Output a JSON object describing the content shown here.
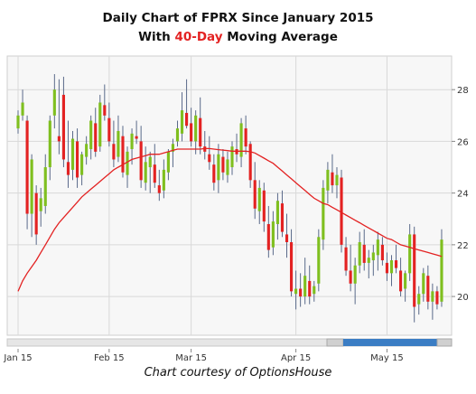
{
  "title_line1": "Daily Chart of FPRX Since January 2015",
  "title_line2_prefix": "With ",
  "title_line2_highlight": "40-Day",
  "title_line2_suffix": " Moving Average",
  "caption": "Chart courtesy of OptionsHouse",
  "colors": {
    "up": "#7fbf1f",
    "down": "#e32222",
    "ma": "#e32222",
    "grid": "#d9d9d9",
    "plot_bg": "#f7f7f7",
    "scrollbar": "#3b7dc4"
  },
  "chart_data": {
    "type": "candlestick",
    "title": "Daily Chart of FPRX Since January 2015",
    "subtitle": "With 40-Day Moving Average",
    "x_tick_labels": [
      "Jan 15",
      "Feb 15",
      "Mar 15",
      "Apr 15",
      "May 15"
    ],
    "y_tick_labels": [
      "20",
      "22",
      "24",
      "26",
      "28"
    ],
    "ylim": [
      18.5,
      29.3
    ],
    "grid": true,
    "y_axis_side": "right",
    "series": [
      {
        "kind": "ohlc",
        "candles": [
          [
            26.5,
            27.2,
            26.3,
            27.0
          ],
          [
            27.0,
            28.0,
            26.8,
            27.5
          ],
          [
            26.8,
            27.0,
            22.6,
            23.2
          ],
          [
            23.2,
            25.5,
            22.3,
            25.3
          ],
          [
            24.0,
            24.3,
            22.0,
            22.4
          ],
          [
            23.3,
            24.2,
            22.7,
            23.8
          ],
          [
            23.5,
            25.5,
            23.2,
            25.0
          ],
          [
            25.0,
            27.0,
            24.5,
            26.8
          ],
          [
            27.0,
            28.6,
            26.5,
            28.0
          ],
          [
            26.2,
            28.4,
            25.5,
            26.0
          ],
          [
            27.8,
            28.5,
            25.0,
            25.3
          ],
          [
            25.2,
            26.8,
            24.2,
            24.7
          ],
          [
            24.9,
            26.4,
            24.5,
            26.1
          ],
          [
            26.0,
            26.5,
            24.2,
            24.6
          ],
          [
            24.7,
            25.6,
            24.3,
            25.5
          ],
          [
            25.4,
            26.2,
            25.1,
            25.9
          ],
          [
            25.7,
            27.0,
            25.3,
            26.8
          ],
          [
            26.7,
            27.3,
            25.4,
            25.6
          ],
          [
            25.8,
            27.8,
            25.6,
            27.5
          ],
          [
            27.4,
            28.2,
            26.8,
            27.0
          ],
          [
            26.9,
            27.5,
            25.8,
            26.0
          ],
          [
            25.9,
            26.8,
            25.0,
            25.3
          ],
          [
            25.4,
            27.0,
            25.2,
            26.4
          ],
          [
            26.2,
            26.6,
            24.6,
            24.8
          ],
          [
            24.7,
            25.8,
            24.2,
            25.6
          ],
          [
            25.7,
            26.5,
            25.1,
            26.3
          ],
          [
            26.2,
            26.8,
            25.9,
            26.1
          ],
          [
            26.0,
            26.6,
            24.2,
            24.5
          ],
          [
            24.4,
            25.8,
            24.1,
            25.2
          ],
          [
            25.0,
            25.6,
            24.0,
            25.4
          ],
          [
            25.1,
            25.9,
            24.2,
            24.4
          ],
          [
            24.3,
            24.9,
            23.7,
            24.0
          ],
          [
            24.1,
            25.3,
            23.8,
            24.9
          ],
          [
            24.8,
            25.7,
            24.5,
            25.6
          ],
          [
            25.6,
            26.1,
            25.0,
            25.9
          ],
          [
            26.0,
            26.8,
            25.8,
            26.5
          ],
          [
            26.3,
            27.9,
            26.0,
            27.2
          ],
          [
            27.1,
            28.4,
            26.5,
            26.6
          ],
          [
            26.7,
            27.3,
            25.8,
            26.0
          ],
          [
            26.0,
            27.2,
            25.5,
            27.0
          ],
          [
            26.9,
            27.7,
            25.5,
            25.8
          ],
          [
            25.8,
            26.4,
            25.3,
            25.6
          ],
          [
            25.5,
            26.2,
            24.9,
            25.2
          ],
          [
            25.1,
            25.5,
            24.1,
            24.4
          ],
          [
            24.5,
            25.9,
            24.0,
            25.5
          ],
          [
            25.4,
            25.7,
            24.5,
            24.8
          ],
          [
            24.7,
            25.6,
            24.4,
            25.3
          ],
          [
            25.0,
            26.0,
            24.7,
            25.8
          ],
          [
            25.7,
            26.3,
            25.2,
            25.5
          ],
          [
            25.4,
            26.9,
            25.0,
            26.7
          ],
          [
            26.5,
            27.0,
            25.5,
            25.8
          ],
          [
            25.9,
            26.0,
            24.2,
            24.5
          ],
          [
            24.5,
            25.2,
            23.0,
            23.4
          ],
          [
            23.3,
            24.5,
            22.8,
            24.2
          ],
          [
            24.1,
            24.4,
            22.5,
            22.9
          ],
          [
            22.8,
            23.5,
            21.5,
            21.8
          ],
          [
            21.9,
            23.3,
            21.6,
            22.9
          ],
          [
            22.8,
            24.0,
            22.2,
            23.7
          ],
          [
            23.6,
            24.1,
            22.3,
            22.5
          ],
          [
            22.4,
            23.2,
            21.5,
            22.1
          ],
          [
            22.1,
            22.6,
            20.0,
            20.2
          ],
          [
            20.1,
            21.0,
            19.5,
            20.3
          ],
          [
            20.3,
            20.9,
            19.6,
            20.0
          ],
          [
            20.0,
            21.5,
            19.7,
            20.8
          ],
          [
            20.6,
            21.2,
            19.7,
            20.0
          ],
          [
            20.1,
            20.6,
            19.8,
            20.4
          ],
          [
            20.5,
            22.6,
            20.2,
            22.3
          ],
          [
            22.2,
            24.5,
            21.8,
            24.2
          ],
          [
            24.1,
            25.2,
            23.6,
            24.9
          ],
          [
            24.8,
            25.5,
            24.0,
            24.3
          ],
          [
            24.3,
            25.0,
            23.8,
            24.7
          ],
          [
            24.6,
            24.9,
            21.7,
            22.0
          ],
          [
            21.9,
            22.3,
            20.8,
            21.0
          ],
          [
            21.0,
            22.0,
            20.2,
            20.5
          ],
          [
            20.5,
            21.5,
            19.7,
            21.2
          ],
          [
            21.2,
            22.5,
            20.9,
            22.1
          ],
          [
            22.0,
            22.6,
            21.0,
            21.3
          ],
          [
            21.3,
            21.8,
            20.7,
            21.5
          ],
          [
            21.4,
            22.0,
            20.8,
            21.7
          ],
          [
            21.6,
            22.5,
            21.0,
            22.2
          ],
          [
            22.0,
            22.3,
            21.2,
            21.4
          ],
          [
            21.3,
            21.7,
            20.6,
            20.9
          ],
          [
            20.9,
            21.6,
            20.4,
            21.4
          ],
          [
            21.4,
            22.0,
            20.9,
            21.1
          ],
          [
            21.0,
            21.5,
            20.0,
            20.2
          ],
          [
            20.3,
            21.0,
            19.8,
            20.9
          ],
          [
            20.9,
            22.8,
            20.6,
            22.4
          ],
          [
            22.4,
            22.7,
            19.0,
            19.6
          ],
          [
            19.7,
            20.4,
            19.3,
            20.1
          ],
          [
            20.1,
            21.1,
            19.8,
            20.9
          ],
          [
            20.8,
            21.2,
            19.5,
            19.8
          ],
          [
            19.8,
            20.5,
            19.1,
            20.2
          ],
          [
            20.2,
            20.4,
            19.5,
            19.7
          ],
          [
            19.8,
            22.6,
            19.6,
            22.2
          ]
        ]
      },
      {
        "kind": "moving-average",
        "values": [
          20.2,
          20.6,
          20.9,
          21.15,
          21.4,
          21.7,
          22.0,
          22.3,
          22.6,
          22.85,
          23.05,
          23.25,
          23.45,
          23.65,
          23.85,
          24.0,
          24.15,
          24.3,
          24.45,
          24.6,
          24.75,
          24.9,
          25.0,
          25.1,
          25.2,
          25.3,
          25.35,
          25.4,
          25.45,
          25.5,
          25.5,
          25.5,
          25.55,
          25.6,
          25.65,
          25.7,
          25.7,
          25.7,
          25.7,
          25.7,
          25.7,
          25.72,
          25.72,
          25.7,
          25.68,
          25.66,
          25.64,
          25.62,
          25.62,
          25.62,
          25.62,
          25.6,
          25.55,
          25.45,
          25.35,
          25.25,
          25.15,
          25.0,
          24.85,
          24.7,
          24.55,
          24.4,
          24.25,
          24.1,
          23.95,
          23.8,
          23.7,
          23.6,
          23.55,
          23.45,
          23.35,
          23.25,
          23.15,
          23.05,
          22.95,
          22.85,
          22.75,
          22.65,
          22.55,
          22.45,
          22.35,
          22.25,
          22.2,
          22.1,
          22.0,
          21.95,
          21.9,
          21.85,
          21.8,
          21.75,
          21.7,
          21.65,
          21.6,
          21.55
        ]
      }
    ]
  }
}
